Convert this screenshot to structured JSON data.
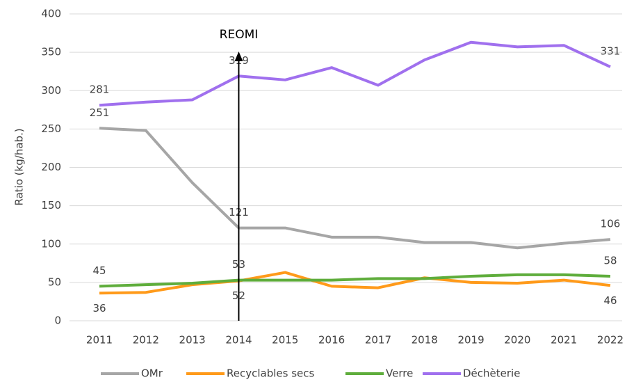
{
  "chart_data": {
    "type": "line",
    "y_label": "Ratio (kg/hab.)",
    "categories": [
      "2011",
      "2012",
      "2013",
      "2014",
      "2015",
      "2016",
      "2017",
      "2018",
      "2019",
      "2020",
      "2021",
      "2022"
    ],
    "series": [
      {
        "name": "OMr",
        "color": "#a6a6a6",
        "values": [
          251,
          248,
          180,
          121,
          121,
          109,
          109,
          102,
          102,
          95,
          101,
          106
        ],
        "value_labels": [
          "251",
          null,
          null,
          "121",
          null,
          null,
          null,
          null,
          null,
          null,
          null,
          "106"
        ]
      },
      {
        "name": "Recyclables secs",
        "color": "#ff9a1a",
        "values": [
          36,
          37,
          47,
          52,
          63,
          45,
          43,
          56,
          50,
          49,
          53,
          46
        ],
        "value_labels": [
          "36",
          null,
          null,
          "52",
          null,
          null,
          null,
          null,
          null,
          null,
          null,
          "46"
        ]
      },
      {
        "name": "Verre",
        "color": "#5fad3c",
        "values": [
          45,
          47,
          49,
          53,
          53,
          53,
          55,
          55,
          58,
          60,
          60,
          58
        ],
        "value_labels": [
          "45",
          null,
          null,
          "53",
          null,
          null,
          null,
          null,
          null,
          null,
          null,
          "58"
        ]
      },
      {
        "name": "Déchèterie",
        "color": "#a070ee",
        "values": [
          281,
          285,
          288,
          319,
          314,
          330,
          307,
          340,
          363,
          357,
          359,
          331
        ],
        "value_labels": [
          "281",
          null,
          null,
          "319",
          null,
          null,
          null,
          null,
          null,
          null,
          null,
          "331"
        ]
      }
    ],
    "annotations": [
      {
        "text": "REOMI",
        "x": "2014"
      }
    ],
    "ylim": [
      0,
      400
    ],
    "yticks": [
      0,
      50,
      100,
      150,
      200,
      250,
      300,
      350,
      400
    ],
    "grid": true,
    "legend": "bottom"
  }
}
